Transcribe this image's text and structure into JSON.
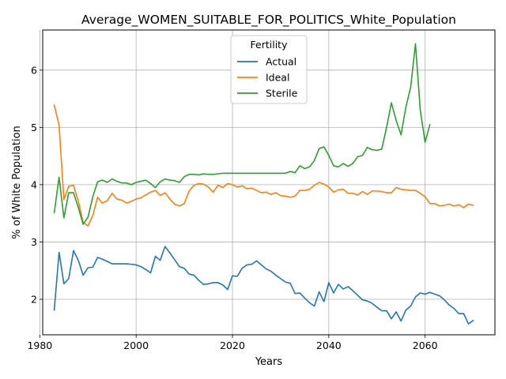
{
  "chart_data": {
    "type": "line",
    "title": "Average_WOMEN_SUITABLE_FOR_POLITICS_White_Population",
    "xlabel": "Years",
    "ylabel": "% of White Population",
    "xlim": [
      1980.6,
      2074.5
    ],
    "ylim": [
      1.38,
      6.7
    ],
    "xticks": [
      1980,
      2000,
      2020,
      2040,
      2060
    ],
    "yticks": [
      2,
      3,
      4,
      5,
      6
    ],
    "grid": true,
    "legend": {
      "title": "Fertility",
      "placement": "upper center"
    },
    "series": [
      {
        "name": "Actual",
        "color": "#1f77b4",
        "x": [
          1983,
          1984,
          1985,
          1986,
          1987,
          1988,
          1989,
          1990,
          1991,
          1992,
          1993,
          1994,
          1995,
          1996,
          1997,
          1998,
          1999,
          2000,
          2001,
          2002,
          2003,
          2004,
          2005,
          2006,
          2007,
          2008,
          2009,
          2010,
          2011,
          2012,
          2013,
          2014,
          2015,
          2016,
          2017,
          2018,
          2019,
          2020,
          2021,
          2022,
          2023,
          2024,
          2025,
          2026,
          2027,
          2028,
          2029,
          2030,
          2031,
          2032,
          2033,
          2034,
          2035,
          2036,
          2037,
          2038,
          2039,
          2040,
          2041,
          2042,
          2043,
          2044,
          2045,
          2046,
          2047,
          2048,
          2049,
          2050,
          2051,
          2052,
          2053,
          2054,
          2055,
          2056,
          2057,
          2058,
          2059,
          2060,
          2061,
          2062,
          2063,
          2064,
          2065,
          2066,
          2067,
          2068,
          2069,
          2070
        ],
        "y": [
          1.81,
          2.82,
          2.27,
          2.36,
          2.85,
          2.68,
          2.42,
          2.55,
          2.56,
          2.73,
          2.7,
          2.66,
          2.62,
          2.62,
          2.62,
          2.62,
          2.61,
          2.6,
          2.57,
          2.52,
          2.46,
          2.75,
          2.68,
          2.92,
          2.81,
          2.69,
          2.57,
          2.54,
          2.44,
          2.42,
          2.33,
          2.26,
          2.27,
          2.29,
          2.29,
          2.25,
          2.17,
          2.41,
          2.4,
          2.54,
          2.6,
          2.61,
          2.67,
          2.6,
          2.53,
          2.49,
          2.42,
          2.36,
          2.3,
          2.28,
          2.1,
          2.11,
          2.02,
          1.94,
          1.88,
          2.13,
          1.96,
          2.29,
          2.11,
          2.26,
          2.18,
          2.22,
          2.15,
          2.07,
          1.99,
          1.97,
          1.93,
          1.86,
          1.8,
          1.8,
          1.66,
          1.78,
          1.62,
          1.81,
          1.88,
          2.04,
          2.11,
          2.09,
          2.12,
          2.09,
          2.06,
          1.99,
          1.9,
          1.84,
          1.75,
          1.75,
          1.57,
          1.63
        ]
      },
      {
        "name": "Ideal",
        "color": "#ff7f0e",
        "x": [
          1983,
          1984,
          1985,
          1986,
          1987,
          1988,
          1989,
          1990,
          1991,
          1992,
          1993,
          1994,
          1995,
          1996,
          1997,
          1998,
          1999,
          2000,
          2001,
          2002,
          2003,
          2004,
          2005,
          2006,
          2007,
          2008,
          2009,
          2010,
          2011,
          2012,
          2013,
          2014,
          2015,
          2016,
          2017,
          2018,
          2019,
          2020,
          2021,
          2022,
          2023,
          2024,
          2025,
          2026,
          2027,
          2028,
          2029,
          2030,
          2031,
          2032,
          2033,
          2034,
          2035,
          2036,
          2037,
          2038,
          2039,
          2040,
          2041,
          2042,
          2043,
          2044,
          2045,
          2046,
          2047,
          2048,
          2049,
          2050,
          2051,
          2052,
          2053,
          2054,
          2055,
          2056,
          2057,
          2058,
          2059,
          2060,
          2061,
          2062,
          2063,
          2064,
          2065,
          2066,
          2067,
          2068,
          2069,
          2070
        ],
        "y": [
          5.39,
          5.04,
          3.74,
          3.97,
          3.99,
          3.71,
          3.34,
          3.28,
          3.46,
          3.78,
          3.68,
          3.72,
          3.85,
          3.75,
          3.73,
          3.68,
          3.71,
          3.75,
          3.77,
          3.82,
          3.87,
          3.9,
          3.81,
          3.86,
          3.75,
          3.66,
          3.63,
          3.67,
          3.89,
          3.99,
          4.02,
          4.01,
          3.96,
          3.87,
          3.99,
          3.95,
          4.02,
          4.0,
          3.96,
          3.98,
          3.93,
          3.94,
          3.9,
          3.86,
          3.87,
          3.83,
          3.86,
          3.81,
          3.8,
          3.78,
          3.8,
          3.9,
          3.9,
          3.92,
          3.99,
          4.04,
          4.01,
          3.96,
          3.87,
          3.91,
          3.92,
          3.85,
          3.85,
          3.82,
          3.88,
          3.83,
          3.89,
          3.89,
          3.88,
          3.86,
          3.86,
          3.95,
          3.92,
          3.91,
          3.9,
          3.9,
          3.85,
          3.79,
          3.67,
          3.67,
          3.63,
          3.64,
          3.66,
          3.63,
          3.65,
          3.6,
          3.66,
          3.64
        ]
      },
      {
        "name": "Sterile",
        "color": "#2ca02c",
        "x": [
          1983,
          1984,
          1985,
          1986,
          1987,
          1988,
          1989,
          1990,
          1991,
          1992,
          1993,
          1994,
          1995,
          1996,
          1997,
          1998,
          1999,
          2000,
          2001,
          2002,
          2003,
          2004,
          2005,
          2006,
          2007,
          2008,
          2009,
          2010,
          2011,
          2012,
          2013,
          2014,
          2015,
          2016,
          2017,
          2018,
          2019,
          2020,
          2021,
          2022,
          2023,
          2024,
          2025,
          2026,
          2027,
          2028,
          2029,
          2030,
          2031,
          2032,
          2033,
          2034,
          2035,
          2036,
          2037,
          2038,
          2039,
          2040,
          2041,
          2042,
          2043,
          2044,
          2045,
          2046,
          2047,
          2048,
          2049,
          2050,
          2051,
          2052,
          2053,
          2054,
          2055,
          2056,
          2057,
          2058,
          2059,
          2060,
          2061
        ],
        "y": [
          3.51,
          4.13,
          3.42,
          3.86,
          3.86,
          3.6,
          3.31,
          3.43,
          3.79,
          4.05,
          4.08,
          4.04,
          4.1,
          4.06,
          4.03,
          4.03,
          4.0,
          4.04,
          4.06,
          4.08,
          4.02,
          3.95,
          4.05,
          4.1,
          4.08,
          4.07,
          4.04,
          4.14,
          4.18,
          4.18,
          4.17,
          4.19,
          4.18,
          4.18,
          4.19,
          4.2,
          4.2,
          4.2,
          4.2,
          4.2,
          4.2,
          4.2,
          4.2,
          4.2,
          4.2,
          4.2,
          4.2,
          4.2,
          4.2,
          4.23,
          4.21,
          4.33,
          4.28,
          4.31,
          4.42,
          4.63,
          4.66,
          4.51,
          4.33,
          4.31,
          4.37,
          4.32,
          4.37,
          4.49,
          4.51,
          4.65,
          4.61,
          4.6,
          4.62,
          5.0,
          5.43,
          5.12,
          4.87,
          5.35,
          5.7,
          6.46,
          5.3,
          4.74,
          5.05
        ]
      }
    ]
  }
}
